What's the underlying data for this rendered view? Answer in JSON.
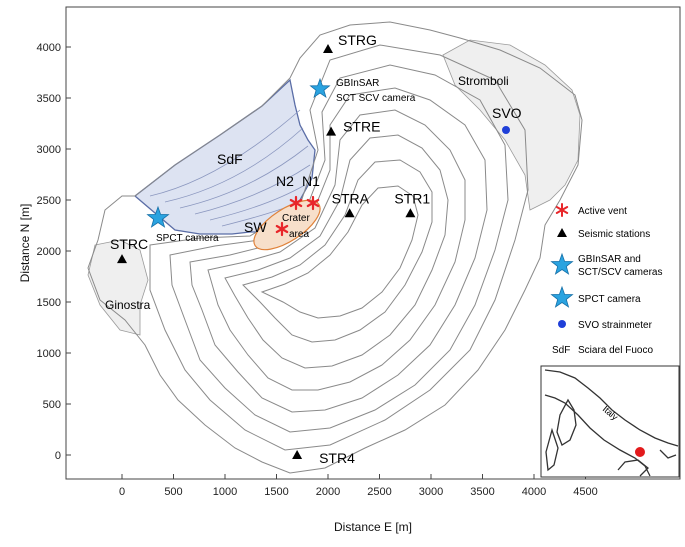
{
  "axes": {
    "xlabel": "Distance E [m]",
    "ylabel": "Distance N [m]",
    "x_ticks": [
      "0",
      "500",
      "1000",
      "1500",
      "2000",
      "2500",
      "3000",
      "3500",
      "4000",
      "4500"
    ],
    "y_ticks": [
      "0",
      "500",
      "1000",
      "1500",
      "2000",
      "2500",
      "3000",
      "3500",
      "4000"
    ],
    "xlim": [
      -500,
      4800
    ],
    "ylim": [
      -250,
      4200
    ]
  },
  "places": {
    "stromboli": "Stromboli",
    "ginostra": "Ginostra",
    "sdf": "SdF",
    "crater_line1": "Crater",
    "crater_line2": "area",
    "n1": "N1",
    "n2": "N2",
    "sw": "SW"
  },
  "stations": [
    {
      "id": "STRG",
      "x": 2000,
      "y": 3980
    },
    {
      "id": "STRE",
      "x": 2030,
      "y": 3170
    },
    {
      "id": "STRA",
      "x": 2210,
      "y": 2370
    },
    {
      "id": "STR1",
      "x": 2800,
      "y": 2370
    },
    {
      "id": "STRC",
      "x": 0,
      "y": 1920
    },
    {
      "id": "STR4",
      "x": 1700,
      "y": 0
    }
  ],
  "cameras": {
    "gbinsar_label_1": "GBInSAR",
    "gbinsar_label_2": "SCT SCV  camera",
    "spct_label": "SPCT camera",
    "svo_label": "SVO"
  },
  "legend": {
    "items": [
      {
        "symbol": "asterisk",
        "label": "Active vent"
      },
      {
        "symbol": "triangle",
        "label": "Seismic stations"
      },
      {
        "symbol": "star",
        "label": "GBInSAR and",
        "label2": "SCT/SCV cameras"
      },
      {
        "symbol": "star",
        "label": "SPCT camera"
      },
      {
        "symbol": "dot",
        "label": "SVO strainmeter"
      },
      {
        "symbol": "text",
        "symbol_text": "SdF",
        "label": "Sciara del Fuoco"
      }
    ]
  },
  "inset": {
    "country": "Italy"
  },
  "colors": {
    "vent": "#e8262a",
    "star_fill": "#2aa3e0",
    "svo_dot": "#1f3fd8",
    "sdf_fill": "#dde3f2",
    "sdf_stroke": "#5a6da6",
    "crater_fill": "#f7dfca",
    "crater_stroke": "#e0823a",
    "village_fill": "#efefef",
    "inset_dot": "#e31a1c"
  }
}
